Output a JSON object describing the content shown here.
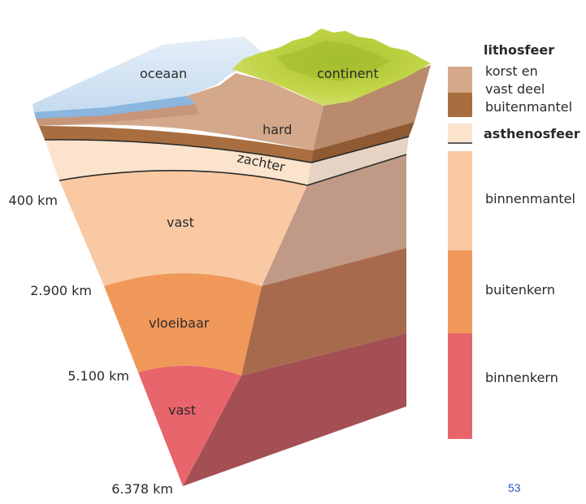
{
  "colors": {
    "ocean": "#cfe1f2",
    "ocean_edge": "#8ab6df",
    "continent": "#b5cc3a",
    "crust": "#d4a88a",
    "upper_mantle_brown": "#a86e3f",
    "asthenosphere": "#fbe3cd",
    "inner_mantle": "#f8c9a3",
    "outer_core": "#f0985a",
    "inner_core": "#e8656b"
  },
  "labels": {
    "ocean": "oceaan",
    "continent": "continent",
    "hard": "hard",
    "zachter": "zachter",
    "vast_mantle": "vast",
    "vloeibaar": "vloeibaar",
    "vast_core": "vast"
  },
  "depths": {
    "d400": "400 km",
    "d2900": "2.900 km",
    "d5100": "5.100 km",
    "d6378": "6.378 km"
  },
  "legend": {
    "lithosfeer": "lithosfeer",
    "korst_line1": "korst en",
    "korst_line2": "vast deel",
    "buitenmantel": "buitenmantel",
    "asthenosfeer": "asthenosfeer",
    "binnenmantel": "binnenmantel",
    "buitenkern": "buitenkern",
    "binnenkern": "binnenkern"
  },
  "page_number": "53"
}
